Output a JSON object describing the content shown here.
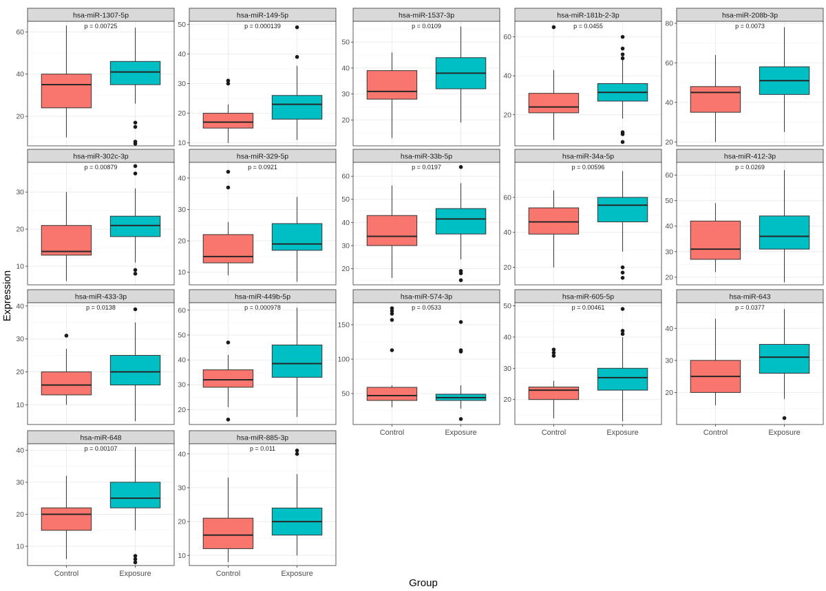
{
  "xlabel": "Group",
  "ylabel": "Expression",
  "colors": {
    "Control": "#F8766D",
    "Exposure": "#00BFC4",
    "strip": "#D9D9D9",
    "grid": "#EBEBEB"
  },
  "chart_data": [
    {
      "type": "boxplot",
      "title": "hsa-miR-1307-5p",
      "annotation": "p = 0.00725",
      "ylim": [
        6,
        65
      ],
      "yticks": [
        20,
        40,
        60
      ],
      "categories": [
        "Control",
        "Exposure"
      ],
      "boxes": [
        {
          "group": "Control",
          "whisker_low": 10,
          "q1": 24,
          "median": 35,
          "q3": 40,
          "whisker_high": 63,
          "outliers": []
        },
        {
          "group": "Exposure",
          "whisker_low": 26,
          "q1": 35,
          "median": 41,
          "q3": 46,
          "whisker_high": 62,
          "outliers": [
            7,
            8,
            15,
            17
          ]
        }
      ]
    },
    {
      "type": "boxplot",
      "title": "hsa-miR-149-5p",
      "annotation": "p = 0.000139",
      "ylim": [
        9,
        51
      ],
      "yticks": [
        10,
        20,
        30,
        40,
        50
      ],
      "categories": [
        "Control",
        "Exposure"
      ],
      "boxes": [
        {
          "group": "Control",
          "whisker_low": 10,
          "q1": 15,
          "median": 17,
          "q3": 20,
          "whisker_high": 23,
          "outliers": [
            30,
            31
          ]
        },
        {
          "group": "Exposure",
          "whisker_low": 11,
          "q1": 18,
          "median": 23,
          "q3": 26,
          "whisker_high": 36,
          "outliers": [
            39,
            49
          ]
        }
      ]
    },
    {
      "type": "boxplot",
      "title": "hsa-miR-1537-3p",
      "annotation": "p = 0.0109",
      "ylim": [
        10,
        58
      ],
      "yticks": [
        20,
        30,
        40,
        50
      ],
      "categories": [
        "Control",
        "Exposure"
      ],
      "boxes": [
        {
          "group": "Control",
          "whisker_low": 13,
          "q1": 28,
          "median": 31,
          "q3": 39,
          "whisker_high": 46,
          "outliers": []
        },
        {
          "group": "Exposure",
          "whisker_low": 19,
          "q1": 32,
          "median": 38,
          "q3": 44,
          "whisker_high": 56,
          "outliers": []
        }
      ]
    },
    {
      "type": "boxplot",
      "title": "hsa-miR-181b-2-3p",
      "annotation": "p = 0.0455",
      "ylim": [
        4,
        68
      ],
      "yticks": [
        20,
        40,
        60
      ],
      "categories": [
        "Control",
        "Exposure"
      ],
      "boxes": [
        {
          "group": "Control",
          "whisker_low": 7,
          "q1": 21,
          "median": 24,
          "q3": 31,
          "whisker_high": 43,
          "outliers": [
            65
          ]
        },
        {
          "group": "Exposure",
          "whisker_low": 18,
          "q1": 27,
          "median": 31.5,
          "q3": 36,
          "whisker_high": 48,
          "outliers": [
            6,
            10,
            11,
            49,
            51,
            54,
            60
          ]
        }
      ]
    },
    {
      "type": "boxplot",
      "title": "hsa-miR-208b-3p",
      "annotation": "p = 0.0073",
      "ylim": [
        18,
        81
      ],
      "yticks": [
        20,
        40,
        60,
        80
      ],
      "categories": [
        "Control",
        "Exposure"
      ],
      "boxes": [
        {
          "group": "Control",
          "whisker_low": 20,
          "q1": 35,
          "median": 45,
          "q3": 48,
          "whisker_high": 64,
          "outliers": []
        },
        {
          "group": "Exposure",
          "whisker_low": 25,
          "q1": 44,
          "median": 51,
          "q3": 58,
          "whisker_high": 78,
          "outliers": []
        }
      ]
    },
    {
      "type": "boxplot",
      "title": "hsa-miR-302c-3p",
      "annotation": "p = 0.00879",
      "ylim": [
        5,
        38
      ],
      "yticks": [
        10,
        20,
        30
      ],
      "categories": [
        "Control",
        "Exposure"
      ],
      "boxes": [
        {
          "group": "Control",
          "whisker_low": 6,
          "q1": 13,
          "median": 14,
          "q3": 21,
          "whisker_high": 30,
          "outliers": []
        },
        {
          "group": "Exposure",
          "whisker_low": 11,
          "q1": 18,
          "median": 21,
          "q3": 23.5,
          "whisker_high": 31,
          "outliers": [
            8,
            9,
            35,
            37
          ]
        }
      ]
    },
    {
      "type": "boxplot",
      "title": "hsa-miR-329-5p",
      "annotation": "p = 0.0921",
      "ylim": [
        6,
        45
      ],
      "yticks": [
        10,
        20,
        30,
        40
      ],
      "categories": [
        "Control",
        "Exposure"
      ],
      "boxes": [
        {
          "group": "Control",
          "whisker_low": 9,
          "q1": 13,
          "median": 15,
          "q3": 22,
          "whisker_high": 26,
          "outliers": [
            37,
            42
          ]
        },
        {
          "group": "Exposure",
          "whisker_low": 7,
          "q1": 17,
          "median": 19,
          "q3": 25.5,
          "whisker_high": 34,
          "outliers": []
        }
      ]
    },
    {
      "type": "boxplot",
      "title": "hsa-miR-33b-5p",
      "annotation": "p = 0.0197",
      "ylim": [
        13,
        66
      ],
      "yticks": [
        20,
        30,
        40,
        50,
        60
      ],
      "categories": [
        "Control",
        "Exposure"
      ],
      "boxes": [
        {
          "group": "Control",
          "whisker_low": 16,
          "q1": 30,
          "median": 34,
          "q3": 43,
          "whisker_high": 56,
          "outliers": []
        },
        {
          "group": "Exposure",
          "whisker_low": 24,
          "q1": 35,
          "median": 41.5,
          "q3": 46,
          "whisker_high": 57,
          "outliers": [
            15,
            18,
            19,
            64
          ]
        }
      ]
    },
    {
      "type": "boxplot",
      "title": "hsa-miR-34a-5p",
      "annotation": "p = 0.00596",
      "ylim": [
        10,
        80
      ],
      "yticks": [
        20,
        40,
        60
      ],
      "categories": [
        "Control",
        "Exposure"
      ],
      "boxes": [
        {
          "group": "Control",
          "whisker_low": 20,
          "q1": 39,
          "median": 46,
          "q3": 54,
          "whisker_high": 64,
          "outliers": []
        },
        {
          "group": "Exposure",
          "whisker_low": 29,
          "q1": 46,
          "median": 55.5,
          "q3": 60,
          "whisker_high": 75,
          "outliers": [
            14,
            17,
            20
          ]
        }
      ]
    },
    {
      "type": "boxplot",
      "title": "hsa-miR-412-3p",
      "annotation": "p = 0.0269",
      "ylim": [
        17,
        65
      ],
      "yticks": [
        20,
        30,
        40,
        50,
        60
      ],
      "categories": [
        "Control",
        "Exposure"
      ],
      "boxes": [
        {
          "group": "Control",
          "whisker_low": 22,
          "q1": 27,
          "median": 31,
          "q3": 42,
          "whisker_high": 49,
          "outliers": []
        },
        {
          "group": "Exposure",
          "whisker_low": 18,
          "q1": 31,
          "median": 36,
          "q3": 44,
          "whisker_high": 62,
          "outliers": []
        }
      ]
    },
    {
      "type": "boxplot",
      "title": "hsa-miR-433-3p",
      "annotation": "p = 0.0138",
      "ylim": [
        4,
        41
      ],
      "yticks": [
        10,
        20,
        30,
        40
      ],
      "categories": [
        "Control",
        "Exposure"
      ],
      "boxes": [
        {
          "group": "Control",
          "whisker_low": 10,
          "q1": 13,
          "median": 16,
          "q3": 20,
          "whisker_high": 27,
          "outliers": [
            31
          ]
        },
        {
          "group": "Exposure",
          "whisker_low": 5,
          "q1": 16,
          "median": 20,
          "q3": 25,
          "whisker_high": 35,
          "outliers": [
            39
          ]
        }
      ]
    },
    {
      "type": "boxplot",
      "title": "hsa-miR-449b-5p",
      "annotation": "p = 0.000978",
      "ylim": [
        14,
        63
      ],
      "yticks": [
        20,
        30,
        40,
        50,
        60
      ],
      "categories": [
        "Control",
        "Exposure"
      ],
      "boxes": [
        {
          "group": "Control",
          "whisker_low": 21,
          "q1": 29,
          "median": 32,
          "q3": 36,
          "whisker_high": 42,
          "outliers": [
            16,
            47
          ]
        },
        {
          "group": "Exposure",
          "whisker_low": 17,
          "q1": 33,
          "median": 38.5,
          "q3": 46,
          "whisker_high": 61,
          "outliers": []
        }
      ]
    },
    {
      "type": "boxplot",
      "title": "hsa-miR-574-3p",
      "annotation": "p = 0.0533",
      "ylim": [
        5,
        182
      ],
      "yticks": [
        50,
        100,
        150
      ],
      "categories": [
        "Control",
        "Exposure"
      ],
      "boxes": [
        {
          "group": "Control",
          "whisker_low": 30,
          "q1": 40,
          "median": 47,
          "q3": 59,
          "whisker_high": 62,
          "outliers": [
            113,
            157,
            166,
            170,
            174
          ]
        },
        {
          "group": "Exposure",
          "whisker_low": 28,
          "q1": 40,
          "median": 44,
          "q3": 49,
          "whisker_high": 62,
          "outliers": [
            13,
            111,
            113,
            154
          ]
        }
      ]
    },
    {
      "type": "boxplot",
      "title": "hsa-miR-605-5p",
      "annotation": "p = 0.00461",
      "ylim": [
        12,
        51
      ],
      "yticks": [
        20,
        30,
        40,
        50
      ],
      "categories": [
        "Control",
        "Exposure"
      ],
      "boxes": [
        {
          "group": "Control",
          "whisker_low": 14,
          "q1": 20,
          "median": 23,
          "q3": 24,
          "whisker_high": 26,
          "outliers": [
            34,
            35,
            36
          ]
        },
        {
          "group": "Exposure",
          "whisker_low": 13,
          "q1": 23,
          "median": 27,
          "q3": 30,
          "whisker_high": 40,
          "outliers": [
            41,
            42,
            49
          ]
        }
      ]
    },
    {
      "type": "boxplot",
      "title": "hsa-miR-643",
      "annotation": "p = 0.0377",
      "ylim": [
        10,
        48
      ],
      "yticks": [
        20,
        30,
        40
      ],
      "categories": [
        "Control",
        "Exposure"
      ],
      "boxes": [
        {
          "group": "Control",
          "whisker_low": 16,
          "q1": 20,
          "median": 25,
          "q3": 30,
          "whisker_high": 43,
          "outliers": []
        },
        {
          "group": "Exposure",
          "whisker_low": 18,
          "q1": 26,
          "median": 31,
          "q3": 35,
          "whisker_high": 46,
          "outliers": [
            12
          ]
        }
      ]
    },
    {
      "type": "boxplot",
      "title": "hsa-miR-648",
      "annotation": "p = 0.00107",
      "ylim": [
        4,
        42
      ],
      "yticks": [
        10,
        20,
        30,
        40
      ],
      "categories": [
        "Control",
        "Exposure"
      ],
      "boxes": [
        {
          "group": "Control",
          "whisker_low": 6,
          "q1": 15,
          "median": 20,
          "q3": 22,
          "whisker_high": 32,
          "outliers": []
        },
        {
          "group": "Exposure",
          "whisker_low": 15,
          "q1": 22,
          "median": 25,
          "q3": 30,
          "whisker_high": 41,
          "outliers": [
            5,
            6,
            7
          ]
        }
      ]
    },
    {
      "type": "boxplot",
      "title": "hsa-miR-885-3p",
      "annotation": "p = 0.011",
      "ylim": [
        7,
        43
      ],
      "yticks": [
        10,
        20,
        30,
        40
      ],
      "categories": [
        "Control",
        "Exposure"
      ],
      "boxes": [
        {
          "group": "Control",
          "whisker_low": 8,
          "q1": 12,
          "median": 16,
          "q3": 21,
          "whisker_high": 33,
          "outliers": []
        },
        {
          "group": "Exposure",
          "whisker_low": 10,
          "q1": 16,
          "median": 20,
          "q3": 24,
          "whisker_high": 34,
          "outliers": [
            40,
            41
          ]
        }
      ]
    }
  ]
}
